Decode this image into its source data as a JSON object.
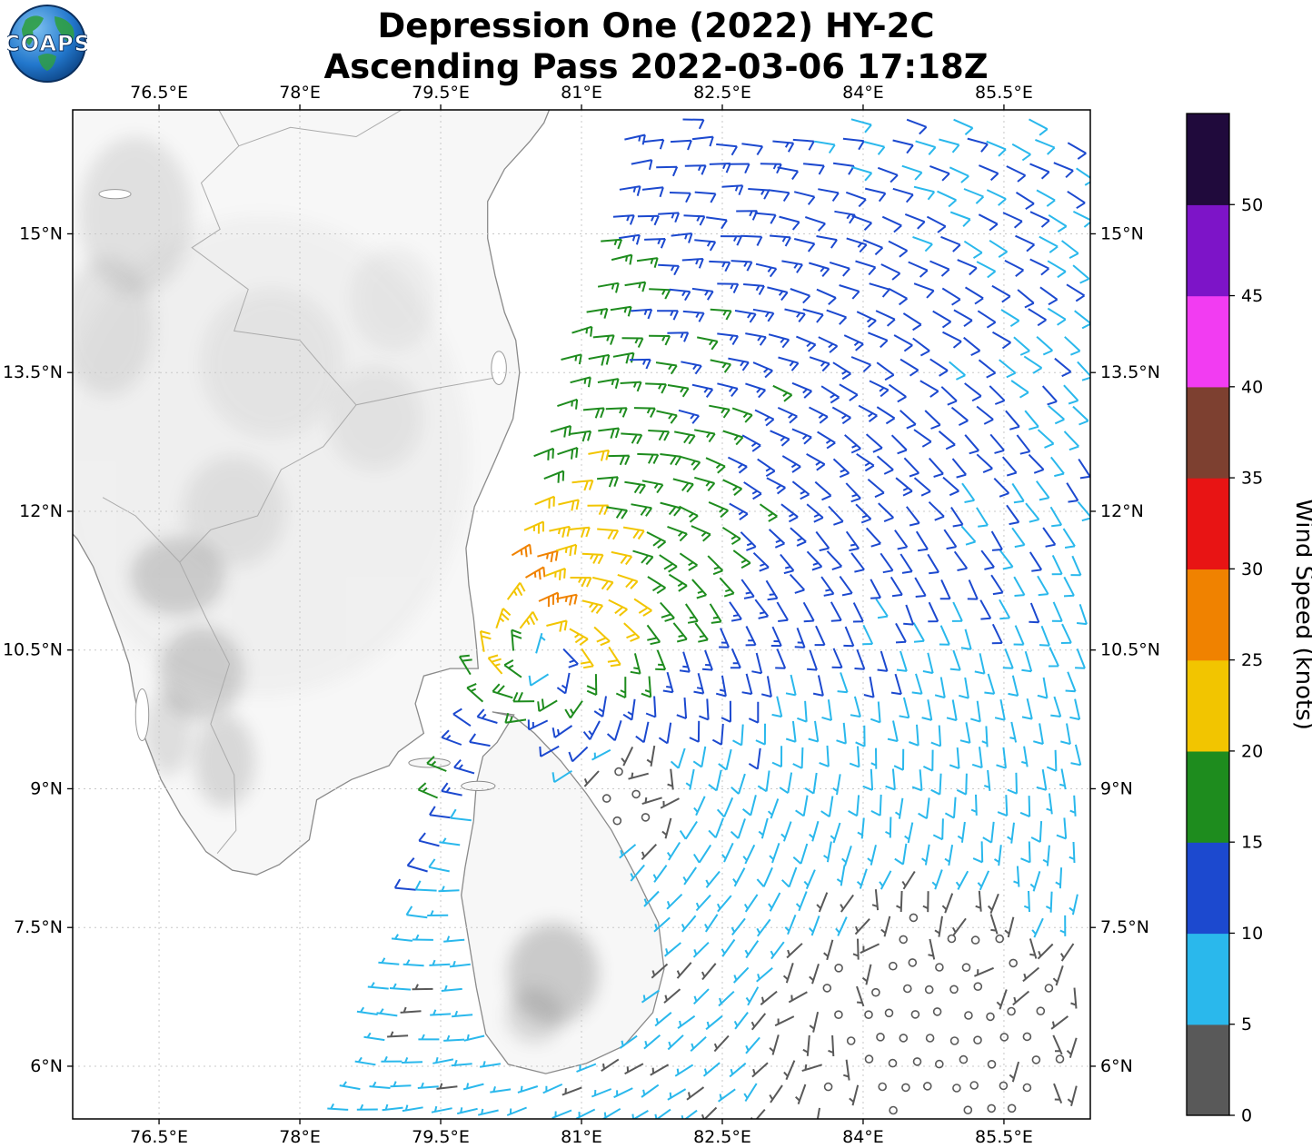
{
  "logo": {
    "text": "COAPS"
  },
  "title": {
    "line1": "Depression One (2022) HY-2C",
    "line2": "Ascending Pass 2022-03-06 17:18Z"
  },
  "chart_data": {
    "type": "windbarb-map",
    "title": "Depression One (2022) HY-2C Ascending Pass 2022-03-06 17:18Z",
    "x_axis": {
      "range": [
        75.58,
        86.42
      ],
      "tick_values": [
        76.5,
        78,
        79.5,
        81,
        82.5,
        84,
        85.5
      ],
      "tick_labels": [
        "76.5°E",
        "78°E",
        "79.5°E",
        "81°E",
        "82.5°E",
        "84°E",
        "85.5°E"
      ]
    },
    "y_axis": {
      "range": [
        5.43,
        16.34
      ],
      "tick_values": [
        15,
        13.5,
        12,
        10.5,
        9,
        7.5,
        6
      ],
      "tick_labels": [
        "15°N",
        "13.5°N",
        "12°N",
        "10.5°N",
        "9°N",
        "7.5°N",
        "6°N"
      ]
    },
    "colorbar": {
      "title": "Wind Speed (knots)",
      "max": 55,
      "tick_values": [
        0,
        5,
        10,
        15,
        20,
        25,
        30,
        35,
        40,
        45,
        50
      ],
      "colors": [
        "#595959",
        "#2ab8ec",
        "#1c49cf",
        "#1e8c1e",
        "#f2c500",
        "#f08200",
        "#e81414",
        "#7d4030",
        "#f23cf2",
        "#7d14c8",
        "#200a3c"
      ]
    },
    "wind_field": {
      "center": [
        80.6,
        10.42
      ],
      "vmax": 24,
      "vcap": 26.5,
      "rmax": 0.45,
      "decay": 0.38,
      "inflow_deg": 18,
      "asym_amp": 0.5,
      "asym_dir": -10,
      "swath_west": [
        5.4,
        78.45,
        0.282
      ],
      "grid_step": 0.262,
      "jets": [
        [
          79.35,
          9.1,
          0.7,
          2.2
        ],
        [
          79.1,
          8.2,
          0.6,
          1.8
        ]
      ],
      "calm_zones": [
        [
          84.9,
          6.2,
          2.3
        ],
        [
          81.58,
          8.95,
          0.72
        ]
      ]
    }
  },
  "geography": {
    "india": [
      [
        80.72,
        16.5
      ],
      [
        80.6,
        16.2
      ],
      [
        80.45,
        16.0
      ],
      [
        80.18,
        15.7
      ],
      [
        80.0,
        15.35
      ],
      [
        80.0,
        14.95
      ],
      [
        80.08,
        14.55
      ],
      [
        80.18,
        14.15
      ],
      [
        80.3,
        13.85
      ],
      [
        80.34,
        13.5
      ],
      [
        80.27,
        13.0
      ],
      [
        80.08,
        12.55
      ],
      [
        79.86,
        12.05
      ],
      [
        79.77,
        11.6
      ],
      [
        79.8,
        11.2
      ],
      [
        79.85,
        10.85
      ],
      [
        79.88,
        10.55
      ],
      [
        79.9,
        10.3
      ],
      [
        79.6,
        10.3
      ],
      [
        79.32,
        10.22
      ],
      [
        79.23,
        9.92
      ],
      [
        79.32,
        9.6
      ],
      [
        79.05,
        9.4
      ],
      [
        78.95,
        9.25
      ],
      [
        78.55,
        9.1
      ],
      [
        78.18,
        8.88
      ],
      [
        78.1,
        8.45
      ],
      [
        77.78,
        8.18
      ],
      [
        77.54,
        8.07
      ],
      [
        77.28,
        8.12
      ],
      [
        77.0,
        8.32
      ],
      [
        76.73,
        8.72
      ],
      [
        76.52,
        9.1
      ],
      [
        76.33,
        9.6
      ],
      [
        76.24,
        10.0
      ],
      [
        76.18,
        10.35
      ],
      [
        76.08,
        10.65
      ],
      [
        75.93,
        11.05
      ],
      [
        75.8,
        11.4
      ],
      [
        75.63,
        11.7
      ],
      [
        75.4,
        11.95
      ],
      [
        75.4,
        16.5
      ]
    ],
    "sri_lanka": [
      [
        80.05,
        9.83
      ],
      [
        80.28,
        9.8
      ],
      [
        80.1,
        9.5
      ],
      [
        79.95,
        9.35
      ],
      [
        79.88,
        9.05
      ],
      [
        79.85,
        8.65
      ],
      [
        79.76,
        8.15
      ],
      [
        79.72,
        7.85
      ],
      [
        79.8,
        7.35
      ],
      [
        79.88,
        6.85
      ],
      [
        79.98,
        6.35
      ],
      [
        80.22,
        6.02
      ],
      [
        80.62,
        5.92
      ],
      [
        81.05,
        6.03
      ],
      [
        81.45,
        6.22
      ],
      [
        81.76,
        6.58
      ],
      [
        81.88,
        7.05
      ],
      [
        81.82,
        7.55
      ],
      [
        81.58,
        8.05
      ],
      [
        81.32,
        8.55
      ],
      [
        81.05,
        8.95
      ],
      [
        80.78,
        9.3
      ],
      [
        80.5,
        9.6
      ],
      [
        80.28,
        9.78
      ]
    ],
    "islets": [
      [
        79.38,
        9.28,
        0.22,
        0.05
      ],
      [
        79.9,
        9.03,
        0.18,
        0.05
      ]
    ],
    "lakes": [
      [
        76.03,
        15.43,
        0.17,
        0.05
      ],
      [
        76.32,
        9.8,
        0.07,
        0.28
      ],
      [
        80.12,
        13.55,
        0.08,
        0.18
      ]
    ],
    "state_borders": [
      [
        [
          77.05,
          16.5
        ],
        [
          77.35,
          15.95
        ],
        [
          76.95,
          15.55
        ],
        [
          77.15,
          15.05
        ],
        [
          76.85,
          14.85
        ],
        [
          77.45,
          14.4
        ],
        [
          77.3,
          13.95
        ],
        [
          78.0,
          13.85
        ],
        [
          78.25,
          13.55
        ],
        [
          78.6,
          13.15
        ],
        [
          79.45,
          13.33
        ],
        [
          80.12,
          13.45
        ]
      ],
      [
        [
          78.6,
          13.15
        ],
        [
          78.25,
          12.7
        ],
        [
          77.8,
          12.45
        ],
        [
          77.55,
          11.95
        ],
        [
          77.05,
          11.8
        ],
        [
          76.72,
          11.45
        ],
        [
          76.25,
          11.95
        ],
        [
          75.9,
          12.15
        ]
      ],
      [
        [
          76.72,
          11.45
        ],
        [
          77.0,
          10.85
        ],
        [
          77.25,
          10.35
        ],
        [
          77.05,
          9.7
        ],
        [
          77.3,
          9.15
        ],
        [
          77.32,
          8.55
        ],
        [
          77.12,
          8.3
        ]
      ],
      [
        [
          79.35,
          16.5
        ],
        [
          78.6,
          16.05
        ],
        [
          77.9,
          16.15
        ],
        [
          77.35,
          15.95
        ]
      ]
    ],
    "terrain": [
      [
        76.95,
        10.25,
        0.45,
        0.5,
        0.28
      ],
      [
        76.7,
        11.3,
        0.5,
        0.42,
        0.28
      ],
      [
        77.3,
        12.0,
        0.55,
        0.6,
        0.13
      ],
      [
        76.25,
        15.2,
        0.6,
        0.85,
        0.16
      ],
      [
        75.95,
        14.0,
        0.5,
        0.75,
        0.14
      ],
      [
        77.7,
        13.6,
        0.75,
        0.8,
        0.09
      ],
      [
        78.8,
        13.0,
        0.5,
        0.55,
        0.1
      ],
      [
        79.0,
        14.3,
        0.45,
        0.55,
        0.08
      ],
      [
        77.2,
        9.3,
        0.32,
        0.5,
        0.22
      ],
      [
        80.7,
        7.0,
        0.48,
        0.55,
        0.32
      ],
      [
        80.5,
        6.55,
        0.3,
        0.3,
        0.22
      ],
      [
        77.6,
        12.6,
        2.2,
        2.6,
        0.05
      ],
      [
        76.6,
        9.6,
        0.25,
        0.45,
        0.18
      ]
    ]
  }
}
